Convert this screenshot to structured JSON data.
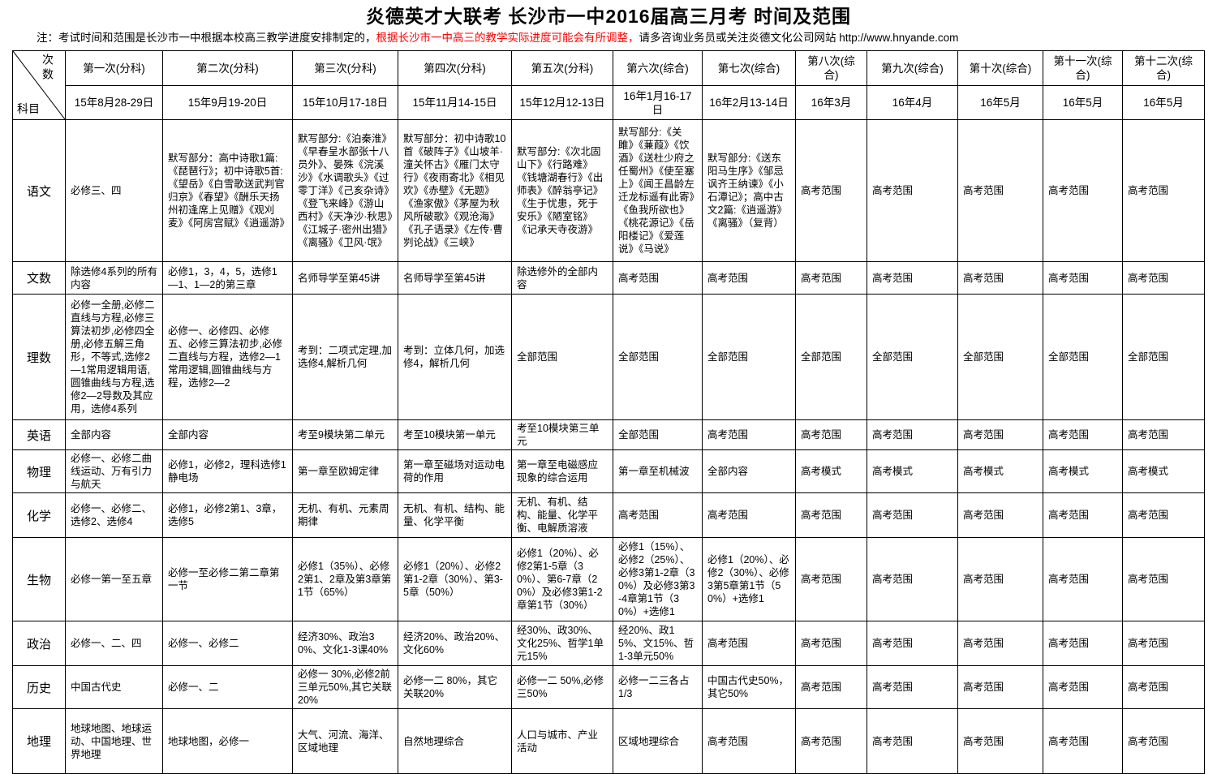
{
  "page": {
    "title": "炎德英才大联考 长沙市一中2016届高三月考 时间及范围",
    "note_prefix": "注：考试时间和范围是长沙市一中根据本校高三教学进度安排制定的，",
    "note_highlight": "根据长沙市一中高三的教学实际进度可能会有所调整，",
    "note_suffix": "请多咨询业务员或关注炎德文化公司网站 http://www.hnyande.com",
    "highlight_color": "#ff0000"
  },
  "table": {
    "corner": {
      "top": "次数",
      "bottom": "科目"
    },
    "columns": [
      {
        "name": "第一次(分科)",
        "date": "15年8月28-29日"
      },
      {
        "name": "第二次(分科)",
        "date": "15年9月19-20日"
      },
      {
        "name": "第三次(分科)",
        "date": "15年10月17-18日"
      },
      {
        "name": "第四次(分科)",
        "date": "15年11月14-15日"
      },
      {
        "name": "第五次(分科)",
        "date": "15年12月12-13日"
      },
      {
        "name": "第六次(综合)",
        "date": "16年1月16-17日"
      },
      {
        "name": "第七次(综合)",
        "date": "16年2月13-14日"
      },
      {
        "name": "第八次(综合)",
        "date": "16年3月"
      },
      {
        "name": "第九次(综合)",
        "date": "16年4月"
      },
      {
        "name": "第十次(综合)",
        "date": "16年5月"
      },
      {
        "name": "第十一次(综合)",
        "date": "16年5月"
      },
      {
        "name": "第十二次(综合)",
        "date": "16年5月"
      }
    ],
    "rows": [
      {
        "subject": "语文",
        "cells": [
          "必修三、四",
          "默写部分：高中诗歌1篇:《琵琶行》；初中诗歌5首:《望岳》《白雪歌送武判官归京》《春望》《酬乐天扬州初逢席上见赠》《观刈麦》《阿房宫赋》《逍遥游》",
          "默写部分:《泊秦淮》《早春呈水部张十八员外》、晏殊《浣溪沙》《水调歌头》《过零丁洋》《己亥杂诗》《登飞来峰》《游山西村》《天净沙·秋思》《江城子·密州出猎》《离骚》《卫风·氓》",
          "默写部分：初中诗歌10首《破阵子》《山坡羊·潼关怀古》《雁门太守行》《夜雨寄北》《相见欢》《赤壁》《无题》《渔家傲》《茅屋为秋风所破歌》《观沧海》《孔子语录》《左传·曹刿论战》《三峡》",
          "默写部分:《次北固山下》《行路难》《钱塘湖春行》《出师表》《醉翁亭记》《生于忧患，死于安乐》《陋室铭》《记承天寺夜游》",
          "默写部分:《关雎》《蒹葭》《饮酒》《送杜少府之任蜀州》《使至塞上》《闻王昌龄左迁龙标遥有此寄》《鱼我所欲也》《桃花源记》《岳阳楼记》《爱莲说》《马说》",
          "默写部分:《送东阳马生序》《邹忌讽齐王纳谏》《小石潭记》；高中古文2篇:《逍遥游》《离骚》（复背）",
          "高考范围",
          "高考范围",
          "高考范围",
          "高考范围",
          "高考范围"
        ]
      },
      {
        "subject": "文数",
        "cells": [
          "除选修4系列的所有内容",
          "必修1，3，4，5，选修1—1、1—2的第三章",
          "名师导学至第45讲",
          "名师导学至第45讲",
          "除选修外的全部内容",
          "高考范围",
          "高考范围",
          "高考范围",
          "高考范围",
          "高考范围",
          "高考范围",
          "高考范围"
        ]
      },
      {
        "subject": "理数",
        "cells": [
          "必修一全册,必修二直线与方程,必修三算法初步,必修四全册,必修五解三角形，不等式,选修2—1常用逻辑用语,圆锥曲线与方程,选修2—2导数及其应用，选修4系列",
          "必修一、必修四、必修五、必修三算法初步,必修二直线与方程，选修2—1常用逻辑,圆锥曲线与方程，选修2—2",
          "考到：二项式定理,加选修4,解析几何",
          "考到：立体几何，加选修4，解析几何",
          "全部范围",
          "全部范围",
          "全部范围",
          "全部范围",
          "全部范围",
          "全部范围",
          "全部范围",
          "全部范围"
        ]
      },
      {
        "subject": "英语",
        "cells": [
          "全部内容",
          "全部内容",
          "考至9模块第二单元",
          "考至10模块第一单元",
          "考至10模块第三单元",
          "全部范围",
          "高考范围",
          "高考范围",
          "高考范围",
          "高考范围",
          "高考范围",
          "高考范围"
        ]
      },
      {
        "subject": "物理",
        "cells": [
          "必修一、必修二曲线运动、万有引力与航天",
          "必修1，必修2，理科选修1静电场",
          "第一章至欧姆定律",
          "第一章至磁场对运动电荷的作用",
          "第一章至电磁感应现象的综合运用",
          "第一章至机械波",
          "全部内容",
          "高考模式",
          "高考模式",
          "高考模式",
          "高考模式",
          "高考模式"
        ]
      },
      {
        "subject": "化学",
        "cells": [
          "必修一、必修二、选修2、选修4",
          "必修1，必修2第1、3章，选修5",
          "无机、有机、元素周期律",
          "无机、有机、结构、能量、化学平衡",
          "无机、有机、结构、能量、化学平衡、电解质溶液",
          "高考范围",
          "高考范围",
          "高考范围",
          "高考范围",
          "高考范围",
          "高考范围",
          "高考范围"
        ]
      },
      {
        "subject": "生物",
        "cells": [
          "必修一第一至五章",
          "必修一至必修二第二章第一节",
          "必修1（35%）、必修2第1、2章及第3章第1节（65%）",
          "必修1（20%）、必修2第1-2章（30%）、第3-5章（50%）",
          "必修1（20%）、必修2第1-5章（30%）、第6-7章（20%）及必修3第1-2章第1节（30%）",
          "必修1（15%）、必修2（25%）、必修3第1-2章（30%）及必修3第3-4章第1节（30%）+选修1",
          "必修1（20%）、必修2（30%）、必修3第5章第1节（50%）+选修1",
          "高考范围",
          "高考范围",
          "高考范围",
          "高考范围",
          "高考范围"
        ]
      },
      {
        "subject": "政治",
        "cells": [
          "必修一、二、四",
          "必修一、必修二",
          "经济30%、政治30%、文化1-3课40%",
          "经济20%、政治20%、文化60%",
          "经30%、政30%、文化25%、哲学1单元15%",
          "经20%、政15%、文15%、哲1-3单元50%",
          "高考范围",
          "高考范围",
          "高考范围",
          "高考范围",
          "高考范围",
          "高考范围"
        ]
      },
      {
        "subject": "历史",
        "cells": [
          "中国古代史",
          "必修一、二",
          "必修一 30%,必修2前三单元50%,其它关联20%",
          "必修一二 80%，其它关联20%",
          "必修一二 50%,必修三50%",
          "必修一二三各占1/3",
          "中国古代史50%，其它50%",
          "高考范围",
          "高考范围",
          "高考范围",
          "高考范围",
          "高考范围"
        ]
      },
      {
        "subject": "地理",
        "cells": [
          "地球地图、地球运动、中国地理、世界地理",
          "地球地图，必修一",
          "大气、河流、海洋、区域地理",
          "自然地理综合",
          "人口与城市、产业活动",
          "区域地理综合",
          "高考范围",
          "高考范围",
          "高考范围",
          "高考范围",
          "高考范围",
          "高考范围"
        ]
      }
    ]
  }
}
